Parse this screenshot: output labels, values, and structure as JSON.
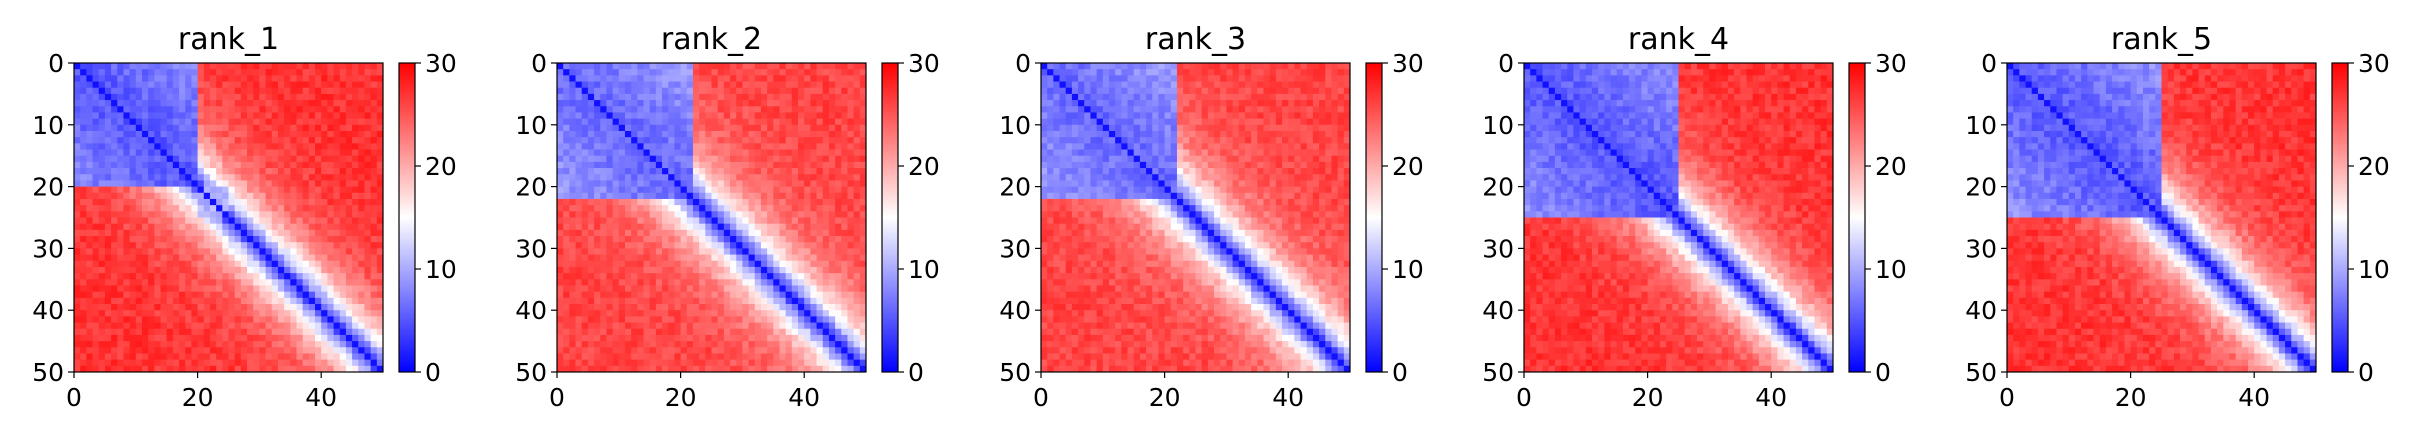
{
  "chart_data": [
    {
      "type": "heatmap",
      "title": "rank_1",
      "matrix_size": 50,
      "xlim": [
        0,
        50
      ],
      "ylim": [
        50,
        0
      ],
      "xticks": [
        0,
        20,
        40
      ],
      "yticks": [
        0,
        10,
        20,
        30,
        40,
        50
      ],
      "colorbar": {
        "min": 0,
        "max": 30,
        "ticks": [
          0,
          10,
          20,
          30
        ],
        "colormap": "bwr",
        "low_color": "#0000ff",
        "mid_color": "#ffffff",
        "high_color": "#ff0000"
      },
      "blocks": [
        {
          "start": 0,
          "end": 20,
          "in_block_value": 5
        },
        {
          "start": 20,
          "end": 25,
          "in_block_value": 10
        }
      ],
      "diagonal_value": 1,
      "far_value": 27
    },
    {
      "type": "heatmap",
      "title": "rank_2",
      "matrix_size": 50,
      "xlim": [
        0,
        50
      ],
      "ylim": [
        50,
        0
      ],
      "xticks": [
        0,
        20,
        40
      ],
      "yticks": [
        0,
        10,
        20,
        30,
        40,
        50
      ],
      "colorbar": {
        "min": 0,
        "max": 30,
        "ticks": [
          0,
          10,
          20,
          30
        ],
        "colormap": "bwr",
        "low_color": "#0000ff",
        "mid_color": "#ffffff",
        "high_color": "#ff0000"
      },
      "blocks": [
        {
          "start": 0,
          "end": 22,
          "in_block_value": 6
        }
      ],
      "diagonal_value": 1,
      "far_value": 26
    },
    {
      "type": "heatmap",
      "title": "rank_3",
      "matrix_size": 50,
      "xlim": [
        0,
        50
      ],
      "ylim": [
        50,
        0
      ],
      "xticks": [
        0,
        20,
        40
      ],
      "yticks": [
        0,
        10,
        20,
        30,
        40,
        50
      ],
      "colorbar": {
        "min": 0,
        "max": 30,
        "ticks": [
          0,
          10,
          20,
          30
        ],
        "colormap": "bwr",
        "low_color": "#0000ff",
        "mid_color": "#ffffff",
        "high_color": "#ff0000"
      },
      "blocks": [
        {
          "start": 0,
          "end": 22,
          "in_block_value": 6
        }
      ],
      "diagonal_value": 1,
      "far_value": 26
    },
    {
      "type": "heatmap",
      "title": "rank_4",
      "matrix_size": 50,
      "xlim": [
        0,
        50
      ],
      "ylim": [
        50,
        0
      ],
      "xticks": [
        0,
        20,
        40
      ],
      "yticks": [
        0,
        10,
        20,
        30,
        40,
        50
      ],
      "colorbar": {
        "min": 0,
        "max": 30,
        "ticks": [
          0,
          10,
          20,
          30
        ],
        "colormap": "bwr",
        "low_color": "#0000ff",
        "mid_color": "#ffffff",
        "high_color": "#ff0000"
      },
      "blocks": [
        {
          "start": 0,
          "end": 25,
          "in_block_value": 5
        }
      ],
      "diagonal_value": 1,
      "far_value": 27
    },
    {
      "type": "heatmap",
      "title": "rank_5",
      "matrix_size": 50,
      "xlim": [
        0,
        50
      ],
      "ylim": [
        50,
        0
      ],
      "xticks": [
        0,
        20,
        40
      ],
      "yticks": [
        0,
        10,
        20,
        30,
        40,
        50
      ],
      "colorbar": {
        "min": 0,
        "max": 30,
        "ticks": [
          0,
          10,
          20,
          30
        ],
        "colormap": "bwr",
        "low_color": "#0000ff",
        "mid_color": "#ffffff",
        "high_color": "#ff0000"
      },
      "blocks": [
        {
          "start": 0,
          "end": 25,
          "in_block_value": 5
        }
      ],
      "diagonal_value": 1,
      "far_value": 27
    }
  ]
}
